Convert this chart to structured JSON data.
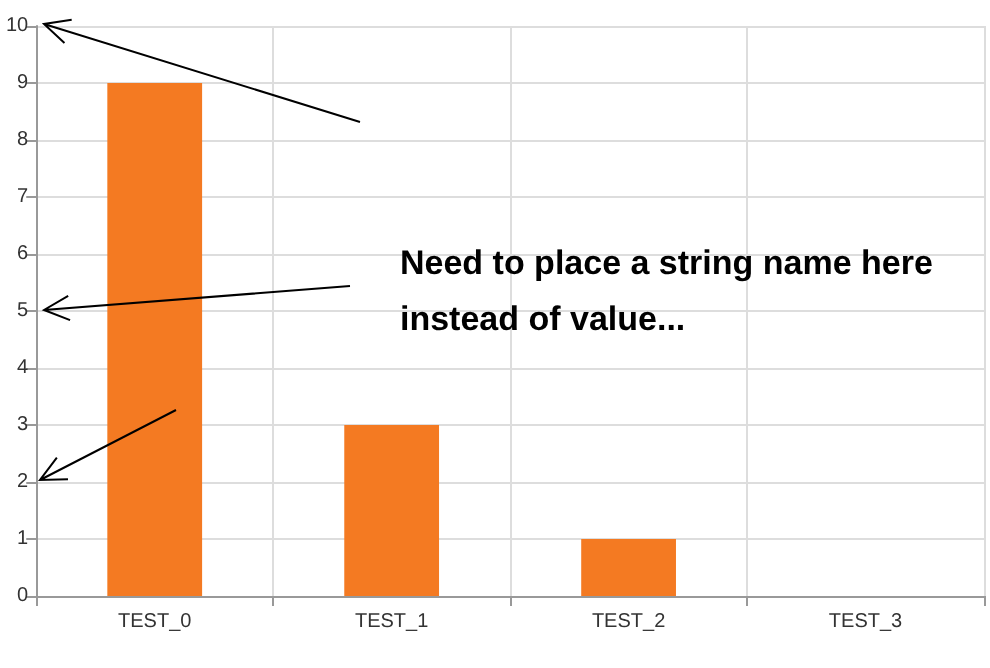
{
  "chart_data": {
    "type": "bar",
    "categories": [
      "TEST_0",
      "TEST_1",
      "TEST_2",
      "TEST_3"
    ],
    "values": [
      9,
      3,
      1,
      0
    ],
    "color": "#f47a22",
    "ylim": [
      0,
      10
    ],
    "yticks": [
      0,
      1,
      2,
      3,
      4,
      5,
      6,
      7,
      8,
      9,
      10
    ],
    "grid": true,
    "annotations": [
      "Need to place a string name here instead of value..."
    ]
  }
}
